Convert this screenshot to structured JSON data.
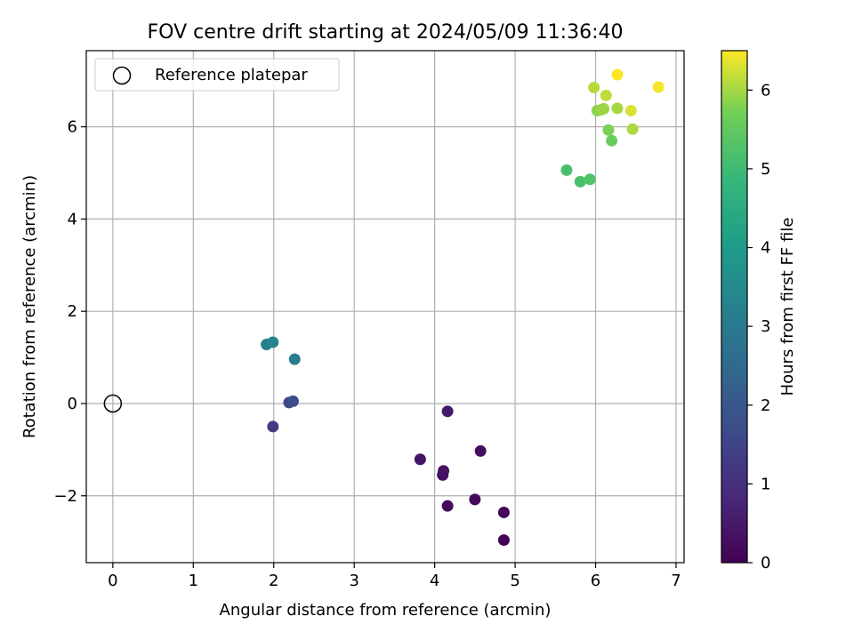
{
  "chart_data": {
    "type": "scatter",
    "title": "FOV centre drift starting at 2024/05/09 11:36:40",
    "xlabel": "Angular distance from reference (arcmin)",
    "ylabel": "Rotation from reference (arcmin)",
    "xlim": [
      -0.33,
      7.1
    ],
    "ylim": [
      -3.45,
      7.65
    ],
    "xticks": [
      0,
      1,
      2,
      3,
      4,
      5,
      6,
      7
    ],
    "yticks": [
      -2,
      0,
      2,
      4,
      6
    ],
    "grid": true,
    "legend": {
      "position": "upper-left",
      "entries": [
        "Reference platepar"
      ]
    },
    "reference_point": {
      "name": "Reference platepar",
      "x": 0,
      "y": 0
    },
    "colorbar": {
      "label": "Hours from first FF file",
      "range": [
        0,
        6.5
      ],
      "ticks": [
        0,
        1,
        2,
        3,
        4,
        5,
        6
      ],
      "colormap": "viridis"
    },
    "points": [
      {
        "x": 4.86,
        "y": -2.96,
        "hours": 0.05
      },
      {
        "x": 4.86,
        "y": -2.36,
        "hours": 0.1
      },
      {
        "x": 4.5,
        "y": -2.08,
        "hours": 0.15
      },
      {
        "x": 4.16,
        "y": -2.22,
        "hours": 0.2
      },
      {
        "x": 4.57,
        "y": -1.03,
        "hours": 0.25
      },
      {
        "x": 4.1,
        "y": -1.55,
        "hours": 0.3
      },
      {
        "x": 4.11,
        "y": -1.46,
        "hours": 0.35
      },
      {
        "x": 3.82,
        "y": -1.21,
        "hours": 0.4
      },
      {
        "x": 4.16,
        "y": -0.17,
        "hours": 0.55
      },
      {
        "x": 1.99,
        "y": -0.5,
        "hours": 1.3
      },
      {
        "x": 2.19,
        "y": 0.02,
        "hours": 1.6
      },
      {
        "x": 2.24,
        "y": 0.05,
        "hours": 1.75
      },
      {
        "x": 2.26,
        "y": 0.96,
        "hours": 3.1
      },
      {
        "x": 1.91,
        "y": 1.28,
        "hours": 3.2
      },
      {
        "x": 1.99,
        "y": 1.33,
        "hours": 3.3
      },
      {
        "x": 5.64,
        "y": 5.06,
        "hours": 5.15
      },
      {
        "x": 5.81,
        "y": 4.81,
        "hours": 5.2
      },
      {
        "x": 5.93,
        "y": 4.86,
        "hours": 5.25
      },
      {
        "x": 6.2,
        "y": 5.7,
        "hours": 5.6
      },
      {
        "x": 6.16,
        "y": 5.93,
        "hours": 5.75
      },
      {
        "x": 6.02,
        "y": 6.35,
        "hours": 5.85
      },
      {
        "x": 6.07,
        "y": 6.37,
        "hours": 5.9
      },
      {
        "x": 6.1,
        "y": 6.39,
        "hours": 5.95
      },
      {
        "x": 6.27,
        "y": 6.4,
        "hours": 6.0
      },
      {
        "x": 6.46,
        "y": 5.95,
        "hours": 6.05
      },
      {
        "x": 5.98,
        "y": 6.85,
        "hours": 6.1
      },
      {
        "x": 6.13,
        "y": 6.68,
        "hours": 6.15
      },
      {
        "x": 6.44,
        "y": 6.35,
        "hours": 6.3
      },
      {
        "x": 6.78,
        "y": 6.86,
        "hours": 6.45
      },
      {
        "x": 6.27,
        "y": 7.13,
        "hours": 6.5
      }
    ]
  }
}
